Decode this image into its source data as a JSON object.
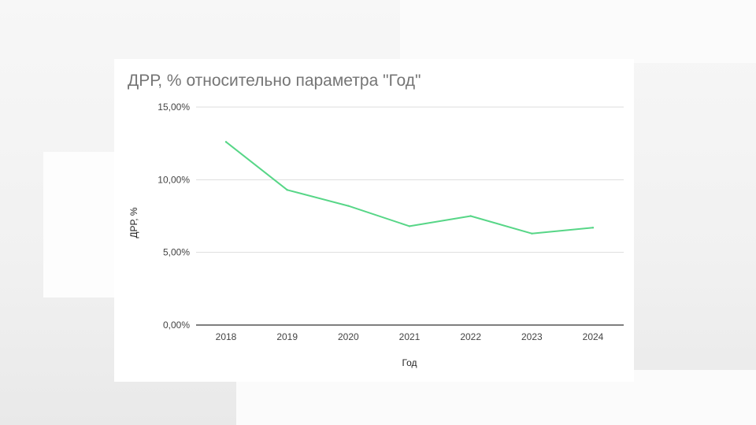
{
  "chart_data": {
    "type": "line",
    "title": "ДРР, % относительно параметра \"Год\"",
    "xlabel": "Год",
    "ylabel": "ДРР, %",
    "categories": [
      "2018",
      "2019",
      "2020",
      "2021",
      "2022",
      "2023",
      "2024"
    ],
    "series": [
      {
        "values": [
          12.6,
          9.3,
          8.2,
          6.8,
          7.5,
          6.3,
          6.7
        ],
        "color": "#57d687"
      }
    ],
    "yticks": [
      0,
      5,
      10,
      15
    ],
    "ytick_labels": [
      "0,00%",
      "5,00%",
      "10,00%",
      "15,00%"
    ],
    "ylim": [
      0,
      15
    ],
    "grid": true,
    "legend": "none"
  }
}
